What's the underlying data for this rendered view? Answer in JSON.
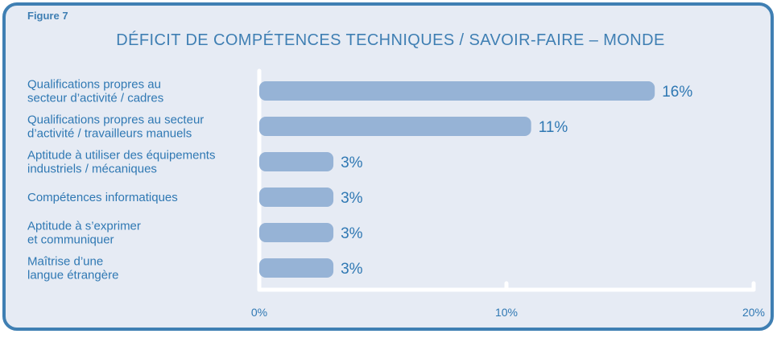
{
  "figure_label": "Figure 7",
  "chart_data": {
    "type": "bar",
    "orientation": "horizontal",
    "title": "DÉFICIT DE COMPÉTENCES TECHNIQUES / SAVOIR-FAIRE – MONDE",
    "categories": [
      [
        "Qualifications propres au",
        "secteur d’activité / cadres"
      ],
      [
        "Qualifications propres au secteur",
        "d’activité / travailleurs manuels"
      ],
      [
        "Aptitude à utiliser des équipements",
        "industriels / mécaniques"
      ],
      [
        "Compétences informatiques"
      ],
      [
        "Aptitude à s’exprimer",
        "et communiquer"
      ],
      [
        "Maîtrise d’une",
        "langue étrangère"
      ]
    ],
    "values": [
      16,
      11,
      3,
      3,
      3,
      3
    ],
    "value_labels": [
      "16%",
      "11%",
      "3%",
      "3%",
      "3%",
      "3%"
    ],
    "xlim": [
      0,
      20
    ],
    "xticks": [
      0,
      10,
      20
    ],
    "xtick_labels": [
      "0%",
      "10%",
      "20%"
    ],
    "grid": false,
    "colors": {
      "bar": "#96b3d6",
      "text": "#2f78b3",
      "frame": "#3f7fb3",
      "background": "#e6ebf4",
      "axis": "#ffffff"
    }
  }
}
